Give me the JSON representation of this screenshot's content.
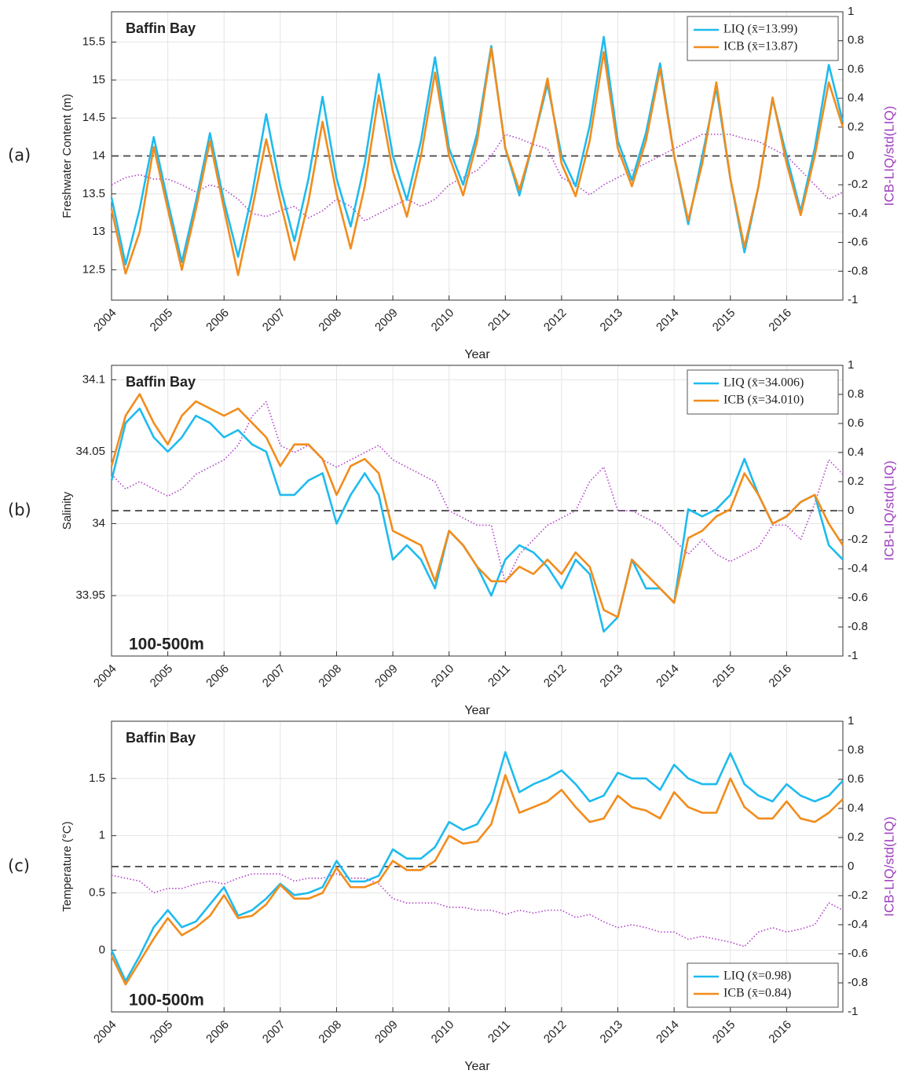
{
  "chart_data": [
    {
      "type": "line",
      "panel_label": "(a)",
      "annotations": [
        "Baffin Bay"
      ],
      "xlabel": "Year",
      "ylabel": "Freshwater Content (m)",
      "y2label": "ICB-LIQ/std(LIQ)",
      "xlim": [
        2004,
        2017
      ],
      "xticks": [
        2004,
        2005,
        2006,
        2007,
        2008,
        2009,
        2010,
        2011,
        2012,
        2013,
        2014,
        2015,
        2016
      ],
      "ylim": [
        12.1,
        15.9
      ],
      "yticks": [
        12.5,
        13,
        13.5,
        14,
        14.5,
        15,
        15.5
      ],
      "y2lim": [
        -1,
        1
      ],
      "y2ticks": [
        -1,
        -0.8,
        -0.6,
        -0.4,
        -0.2,
        0,
        0.2,
        0.4,
        0.6,
        0.8,
        1
      ],
      "y2_refline": 0,
      "grid": true,
      "legend": "upper right",
      "x": [
        2004,
        2004.25,
        2004.5,
        2004.75,
        2005,
        2005.25,
        2005.5,
        2005.75,
        2006,
        2006.25,
        2006.5,
        2006.75,
        2007,
        2007.25,
        2007.5,
        2007.75,
        2008,
        2008.25,
        2008.5,
        2008.75,
        2009,
        2009.25,
        2009.5,
        2009.75,
        2010,
        2010.25,
        2010.5,
        2010.75,
        2011,
        2011.25,
        2011.5,
        2011.75,
        2012,
        2012.25,
        2012.5,
        2012.75,
        2013,
        2013.25,
        2013.5,
        2013.75,
        2014,
        2014.25,
        2014.5,
        2014.75,
        2015,
        2015.25,
        2015.5,
        2015.75,
        2016,
        2016.25,
        2016.5,
        2016.75,
        2017
      ],
      "series": [
        {
          "name": "LIQ (x̄=13.99)",
          "color": "#1ebbee",
          "values": [
            13.45,
            12.57,
            13.3,
            14.25,
            13.4,
            12.6,
            13.4,
            14.3,
            13.4,
            12.67,
            13.5,
            14.55,
            13.6,
            12.88,
            13.7,
            14.78,
            13.7,
            13.07,
            13.9,
            15.08,
            14.0,
            13.42,
            14.2,
            15.3,
            14.1,
            13.62,
            14.3,
            15.45,
            14.1,
            13.48,
            14.2,
            14.95,
            14.0,
            13.6,
            14.4,
            15.57,
            14.2,
            13.68,
            14.3,
            15.22,
            14.0,
            13.1,
            14.0,
            14.9,
            13.7,
            12.73,
            13.6,
            14.75,
            14.0,
            13.27,
            14.1,
            15.2,
            14.45
          ]
        },
        {
          "name": "ICB (x̄=13.87)",
          "color": "#f28c1c",
          "values": [
            13.3,
            12.45,
            13.0,
            14.12,
            13.3,
            12.5,
            13.3,
            14.2,
            13.3,
            12.43,
            13.3,
            14.22,
            13.4,
            12.63,
            13.4,
            14.45,
            13.5,
            12.78,
            13.6,
            14.8,
            13.8,
            13.2,
            14.0,
            15.1,
            14.0,
            13.48,
            14.2,
            15.42,
            14.1,
            13.55,
            14.2,
            15.02,
            13.9,
            13.47,
            14.2,
            15.37,
            14.1,
            13.6,
            14.2,
            15.15,
            14.0,
            13.15,
            13.9,
            14.97,
            13.7,
            12.8,
            13.6,
            14.77,
            13.9,
            13.22,
            14.0,
            14.97,
            14.38
          ]
        },
        {
          "axis": "y2",
          "color": "#b040c8",
          "style": "dotted",
          "values": [
            -0.2,
            -0.15,
            -0.13,
            -0.16,
            -0.16,
            -0.2,
            -0.25,
            -0.2,
            -0.23,
            -0.3,
            -0.4,
            -0.42,
            -0.38,
            -0.35,
            -0.43,
            -0.38,
            -0.3,
            -0.35,
            -0.45,
            -0.4,
            -0.35,
            -0.3,
            -0.35,
            -0.3,
            -0.2,
            -0.15,
            -0.1,
            0.0,
            0.15,
            0.12,
            0.08,
            0.05,
            -0.15,
            -0.2,
            -0.27,
            -0.2,
            -0.15,
            -0.1,
            -0.05,
            0.0,
            0.05,
            0.1,
            0.15,
            0.15,
            0.15,
            0.12,
            0.1,
            0.05,
            0.0,
            -0.1,
            -0.2,
            -0.3,
            -0.25
          ]
        }
      ]
    },
    {
      "type": "line",
      "panel_label": "(b)",
      "annotations": [
        "Baffin Bay",
        "100-500m"
      ],
      "xlabel": "Year",
      "ylabel": "Salinity",
      "y2label": "ICB-LIQ/std(LIQ)",
      "xlim": [
        2004,
        2017
      ],
      "xticks": [
        2004,
        2005,
        2006,
        2007,
        2008,
        2009,
        2010,
        2011,
        2012,
        2013,
        2014,
        2015,
        2016
      ],
      "ylim": [
        33.908,
        34.11
      ],
      "yticks": [
        33.95,
        34,
        34.05,
        34.1
      ],
      "y2lim": [
        -1,
        1
      ],
      "y2ticks": [
        -1,
        -0.8,
        -0.6,
        -0.4,
        -0.2,
        0,
        0.2,
        0.4,
        0.6,
        0.8,
        1
      ],
      "y2_refline": 0,
      "grid": true,
      "legend": "upper right",
      "x": [
        2004,
        2004.25,
        2004.5,
        2004.75,
        2005,
        2005.25,
        2005.5,
        2005.75,
        2006,
        2006.25,
        2006.5,
        2006.75,
        2007,
        2007.25,
        2007.5,
        2007.75,
        2008,
        2008.25,
        2008.5,
        2008.75,
        2009,
        2009.25,
        2009.5,
        2009.75,
        2010,
        2010.25,
        2010.5,
        2010.75,
        2011,
        2011.25,
        2011.5,
        2011.75,
        2012,
        2012.25,
        2012.5,
        2012.75,
        2013,
        2013.25,
        2013.5,
        2013.75,
        2014,
        2014.25,
        2014.5,
        2014.75,
        2015,
        2015.25,
        2015.5,
        2015.75,
        2016,
        2016.25,
        2016.5,
        2016.75,
        2017
      ],
      "series": [
        {
          "name": "LIQ (x̄=34.006)",
          "color": "#1ebbee",
          "values": [
            34.03,
            34.07,
            34.08,
            34.06,
            34.05,
            34.06,
            34.075,
            34.07,
            34.06,
            34.065,
            34.055,
            34.05,
            34.02,
            34.02,
            34.03,
            34.035,
            34.0,
            34.02,
            34.035,
            34.02,
            33.975,
            33.985,
            33.975,
            33.955,
            33.995,
            33.985,
            33.97,
            33.95,
            33.975,
            33.985,
            33.98,
            33.97,
            33.955,
            33.975,
            33.965,
            33.925,
            33.935,
            33.975,
            33.955,
            33.955,
            33.945,
            34.01,
            34.005,
            34.01,
            34.02,
            34.045,
            34.02,
            34.0,
            34.005,
            34.015,
            34.02,
            33.985,
            33.975
          ]
        },
        {
          "name": "ICB (x̄=34.010)",
          "color": "#f28c1c",
          "values": [
            34.04,
            34.075,
            34.09,
            34.07,
            34.055,
            34.075,
            34.085,
            34.08,
            34.075,
            34.08,
            34.07,
            34.06,
            34.04,
            34.055,
            34.055,
            34.045,
            34.02,
            34.04,
            34.045,
            34.035,
            33.995,
            33.99,
            33.985,
            33.96,
            33.995,
            33.985,
            33.97,
            33.96,
            33.96,
            33.97,
            33.965,
            33.975,
            33.965,
            33.98,
            33.97,
            33.94,
            33.935,
            33.975,
            33.965,
            33.955,
            33.945,
            33.99,
            33.995,
            34.005,
            34.01,
            34.035,
            34.02,
            34.0,
            34.005,
            34.015,
            34.02,
            34.0,
            33.985
          ]
        },
        {
          "axis": "y2",
          "color": "#b040c8",
          "style": "dotted",
          "values": [
            0.25,
            0.15,
            0.2,
            0.15,
            0.1,
            0.15,
            0.25,
            0.3,
            0.35,
            0.45,
            0.65,
            0.75,
            0.45,
            0.4,
            0.45,
            0.35,
            0.3,
            0.35,
            0.4,
            0.45,
            0.35,
            0.3,
            0.25,
            0.2,
            0.0,
            -0.05,
            -0.1,
            -0.1,
            -0.5,
            -0.3,
            -0.2,
            -0.1,
            -0.05,
            0.0,
            0.2,
            0.3,
            0.0,
            0.0,
            -0.05,
            -0.1,
            -0.2,
            -0.3,
            -0.2,
            -0.3,
            -0.35,
            -0.3,
            -0.25,
            -0.1,
            -0.1,
            -0.2,
            0.05,
            0.35,
            0.25
          ]
        }
      ]
    },
    {
      "type": "line",
      "panel_label": "(c)",
      "annotations": [
        "Baffin Bay",
        "100-500m"
      ],
      "xlabel": "Year",
      "ylabel": "Temperature (°C)",
      "y2label": "ICB-LIQ/std(LIQ)",
      "xlim": [
        2004,
        2017
      ],
      "xticks": [
        2004,
        2005,
        2006,
        2007,
        2008,
        2009,
        2010,
        2011,
        2012,
        2013,
        2014,
        2015,
        2016
      ],
      "ylim": [
        -0.54,
        2.0
      ],
      "yticks": [
        0,
        0.5,
        1,
        1.5
      ],
      "y2lim": [
        -1,
        1
      ],
      "y2ticks": [
        -1,
        -0.8,
        -0.6,
        -0.4,
        -0.2,
        0,
        0.2,
        0.4,
        0.6,
        0.8,
        1
      ],
      "y2_refline": 0,
      "grid": true,
      "legend": "lower right",
      "x": [
        2004,
        2004.25,
        2004.5,
        2004.75,
        2005,
        2005.25,
        2005.5,
        2005.75,
        2006,
        2006.25,
        2006.5,
        2006.75,
        2007,
        2007.25,
        2007.5,
        2007.75,
        2008,
        2008.25,
        2008.5,
        2008.75,
        2009,
        2009.25,
        2009.5,
        2009.75,
        2010,
        2010.25,
        2010.5,
        2010.75,
        2011,
        2011.25,
        2011.5,
        2011.75,
        2012,
        2012.25,
        2012.5,
        2012.75,
        2013,
        2013.25,
        2013.5,
        2013.75,
        2014,
        2014.25,
        2014.5,
        2014.75,
        2015,
        2015.25,
        2015.5,
        2015.75,
        2016,
        2016.25,
        2016.5,
        2016.75,
        2017
      ],
      "series": [
        {
          "name": "LIQ (x̄=0.98)",
          "color": "#1ebbee",
          "values": [
            0.0,
            -0.27,
            -0.05,
            0.2,
            0.35,
            0.2,
            0.25,
            0.4,
            0.55,
            0.3,
            0.35,
            0.45,
            0.58,
            0.48,
            0.5,
            0.55,
            0.78,
            0.6,
            0.6,
            0.65,
            0.88,
            0.8,
            0.8,
            0.9,
            1.12,
            1.05,
            1.1,
            1.3,
            1.73,
            1.38,
            1.45,
            1.5,
            1.57,
            1.45,
            1.3,
            1.35,
            1.55,
            1.5,
            1.5,
            1.4,
            1.62,
            1.5,
            1.45,
            1.45,
            1.72,
            1.45,
            1.35,
            1.3,
            1.45,
            1.35,
            1.3,
            1.35,
            1.48
          ]
        },
        {
          "name": "ICB (x̄=0.84)",
          "color": "#f28c1c",
          "values": [
            -0.05,
            -0.3,
            -0.1,
            0.1,
            0.28,
            0.13,
            0.2,
            0.3,
            0.48,
            0.28,
            0.3,
            0.4,
            0.57,
            0.45,
            0.45,
            0.5,
            0.72,
            0.55,
            0.55,
            0.6,
            0.78,
            0.7,
            0.7,
            0.78,
            1.0,
            0.93,
            0.95,
            1.1,
            1.53,
            1.2,
            1.25,
            1.3,
            1.4,
            1.25,
            1.12,
            1.15,
            1.35,
            1.25,
            1.22,
            1.15,
            1.38,
            1.25,
            1.2,
            1.2,
            1.5,
            1.25,
            1.15,
            1.15,
            1.3,
            1.15,
            1.12,
            1.2,
            1.32
          ]
        },
        {
          "axis": "y2",
          "color": "#b040c8",
          "style": "dotted",
          "values": [
            -0.06,
            -0.08,
            -0.1,
            -0.18,
            -0.15,
            -0.15,
            -0.12,
            -0.1,
            -0.12,
            -0.08,
            -0.05,
            -0.05,
            -0.05,
            -0.1,
            -0.08,
            -0.08,
            -0.05,
            -0.08,
            -0.08,
            -0.12,
            -0.22,
            -0.25,
            -0.25,
            -0.25,
            -0.28,
            -0.28,
            -0.3,
            -0.3,
            -0.33,
            -0.3,
            -0.32,
            -0.3,
            -0.3,
            -0.35,
            -0.33,
            -0.38,
            -0.42,
            -0.4,
            -0.42,
            -0.45,
            -0.45,
            -0.5,
            -0.48,
            -0.5,
            -0.52,
            -0.55,
            -0.45,
            -0.42,
            -0.45,
            -0.43,
            -0.4,
            -0.25,
            -0.3
          ]
        }
      ]
    }
  ]
}
